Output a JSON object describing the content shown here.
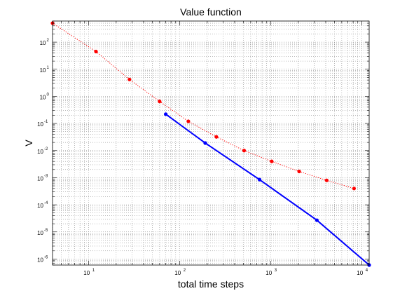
{
  "chart_data": {
    "type": "line",
    "title": "Value function",
    "xlabel": "total time steps",
    "ylabel": "V",
    "xscale": "log",
    "yscale": "log",
    "xlim": [
      4,
      12000
    ],
    "ylim": [
      6e-07,
      600
    ],
    "grid": true,
    "x_tick_labels": [
      "10",
      "10",
      "10",
      "10"
    ],
    "x_tick_exponents": [
      "1",
      "2",
      "3",
      "4"
    ],
    "x_tick_values": [
      10,
      100,
      1000,
      10000
    ],
    "y_tick_labels": [
      "10",
      "10",
      "10",
      "10",
      "10",
      "10",
      "10",
      "10",
      "10"
    ],
    "y_tick_exponents": [
      "2",
      "1",
      "0",
      "-1",
      "-2",
      "-3",
      "-4",
      "-5",
      "-6"
    ],
    "y_tick_values": [
      100,
      10,
      1,
      0.1,
      0.01,
      0.001,
      0.0001,
      1e-05,
      1e-06
    ],
    "series": [
      {
        "color": "#ff0000",
        "line_style": "dotted",
        "marker": "circle",
        "x": [
          4,
          12,
          28,
          60,
          124,
          252,
          508,
          1020,
          2044,
          4092,
          8188
        ],
        "y": [
          500,
          45,
          4.2,
          0.65,
          0.12,
          0.032,
          0.01,
          0.004,
          0.0017,
          0.0008,
          0.0004
        ]
      },
      {
        "color": "#0000ff",
        "line_style": "solid",
        "marker": "circle",
        "x": [
          70,
          190,
          750,
          3200,
          12000
        ],
        "y": [
          0.22,
          0.019,
          0.00085,
          2.7e-05,
          6e-07
        ]
      }
    ]
  }
}
